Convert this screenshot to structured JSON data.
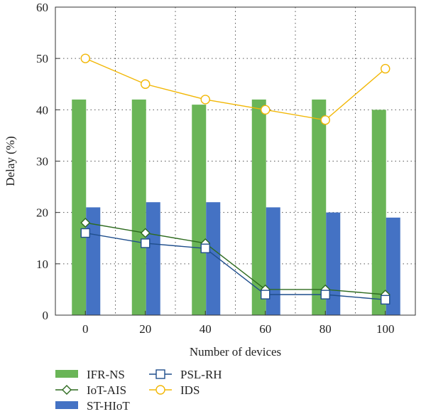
{
  "chart_data": {
    "type": "bar",
    "categories": [
      "0",
      "20",
      "40",
      "60",
      "80",
      "100"
    ],
    "xlabel": "Number of devices",
    "ylabel": "Delay (%)",
    "ylim": [
      0,
      60
    ],
    "yticks": [
      "0",
      "10",
      "20",
      "30",
      "40",
      "50",
      "60"
    ],
    "grid": "dotted",
    "legend_position": "bottom",
    "series": [
      {
        "name": "IFR-NS",
        "kind": "bar",
        "color": "#6ab557",
        "values": [
          42,
          42,
          41,
          42,
          42,
          40
        ]
      },
      {
        "name": "ST-HIoT",
        "kind": "bar",
        "color": "#4472c4",
        "values": [
          21,
          22,
          22,
          21,
          20,
          19
        ]
      },
      {
        "name": "IoT-AIS",
        "kind": "line",
        "marker": "diamond",
        "color": "#2e6b1f",
        "values": [
          18,
          16,
          14,
          5,
          5,
          4
        ]
      },
      {
        "name": "PSL-RH",
        "kind": "line",
        "marker": "square",
        "color": "#1f4e8c",
        "values": [
          16,
          14,
          13,
          4,
          4,
          3
        ]
      },
      {
        "name": "IDS",
        "kind": "line",
        "marker": "circle",
        "color": "#f2b705",
        "values": [
          50,
          45,
          42,
          40,
          38,
          48
        ]
      }
    ]
  }
}
